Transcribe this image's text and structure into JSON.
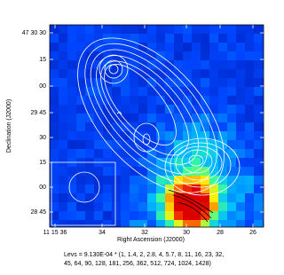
{
  "figure": {
    "y_axis": {
      "label": "Declination (J2000)",
      "ticks": [
        "47 30 30",
        "15",
        "00",
        "29 45",
        "30",
        "15",
        "00",
        "28 45"
      ]
    },
    "x_axis": {
      "label": "Right Ascension (J2000)",
      "ticks": [
        "11 15 36",
        "34",
        "32",
        "30",
        "28",
        "26"
      ]
    },
    "caption": [
      "Levs = 9.130E-04 * (1, 1.4, 2, 2.8, 4, 5.7, 8, 11, 16, 23, 32,",
      "45, 64, 90, 128, 181, 256, 362, 512, 724, 1024, 1428)"
    ]
  }
}
